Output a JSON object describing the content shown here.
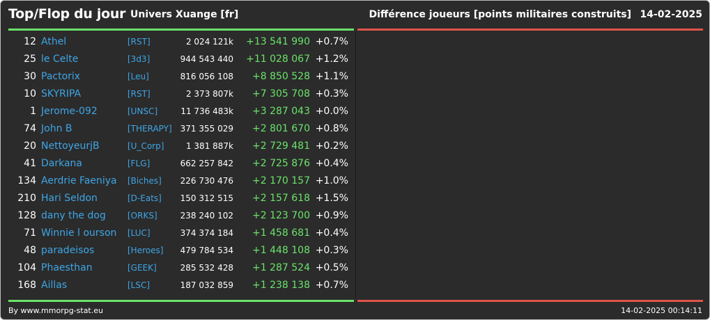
{
  "header": {
    "title": "Top/Flop du jour",
    "universe": "Univers Xuange [fr]",
    "metric": "Différence joueurs [points militaires construits]",
    "date": "14-02-2025"
  },
  "colors": {
    "background": "#2b2b2b",
    "accent_green": "#6be36b",
    "accent_red": "#e0544a",
    "link_blue": "#3ea6e6"
  },
  "top_rows": [
    {
      "rank": "12",
      "name": "Athel",
      "tag": "[RST]",
      "score": "2 024 121k",
      "diff": "+13 541 990",
      "pct": "+0.7%"
    },
    {
      "rank": "25",
      "name": "le Celte",
      "tag": "[3d3]",
      "score": "944 543 440",
      "diff": "+11 028 067",
      "pct": "+1.2%"
    },
    {
      "rank": "30",
      "name": "Pactorix",
      "tag": "[Leu]",
      "score": "816 056 108",
      "diff": "+8 850 528",
      "pct": "+1.1%"
    },
    {
      "rank": "10",
      "name": "SKYRIPA",
      "tag": "[RST]",
      "score": "2 373 807k",
      "diff": "+7 305 708",
      "pct": "+0.3%"
    },
    {
      "rank": "1",
      "name": "Jerome-092",
      "tag": "[UNSC]",
      "score": "11 736 483k",
      "diff": "+3 287 043",
      "pct": "+0.0%"
    },
    {
      "rank": "74",
      "name": "John B",
      "tag": "[THERAPY]",
      "score": "371 355 029",
      "diff": "+2 801 670",
      "pct": "+0.8%"
    },
    {
      "rank": "20",
      "name": "NettoyeurjB",
      "tag": "[U_Corp]",
      "score": "1 381 887k",
      "diff": "+2 729 481",
      "pct": "+0.2%"
    },
    {
      "rank": "41",
      "name": "Darkana",
      "tag": "[FLG]",
      "score": "662 257 842",
      "diff": "+2 725 876",
      "pct": "+0.4%"
    },
    {
      "rank": "134",
      "name": "Aerdrie Faeniya",
      "tag": "[Biches]",
      "score": "226 730 476",
      "diff": "+2 170 157",
      "pct": "+1.0%"
    },
    {
      "rank": "210",
      "name": "Hari Seldon",
      "tag": "[D-Eats]",
      "score": "150 312 515",
      "diff": "+2 157 618",
      "pct": "+1.5%"
    },
    {
      "rank": "128",
      "name": "dany the dog",
      "tag": "[ORKS]",
      "score": "238 240 102",
      "diff": "+2 123 700",
      "pct": "+0.9%"
    },
    {
      "rank": "71",
      "name": "Winnie l ourson",
      "tag": "[LUC]",
      "score": "374 374 184",
      "diff": "+1 458 681",
      "pct": "+0.4%"
    },
    {
      "rank": "48",
      "name": "paradeisos",
      "tag": "[Heroes]",
      "score": "479 784 534",
      "diff": "+1 448 108",
      "pct": "+0.3%"
    },
    {
      "rank": "104",
      "name": "Phaesthan",
      "tag": "[GEEK]",
      "score": "285 532 428",
      "diff": "+1 287 524",
      "pct": "+0.5%"
    },
    {
      "rank": "168",
      "name": "Aillas",
      "tag": "[LSC]",
      "score": "187 032 859",
      "diff": "+1 238 138",
      "pct": "+0.7%"
    }
  ],
  "footer": {
    "credit": "By www.mmorpg-stat.eu",
    "timestamp": "14-02-2025 00:14:11"
  }
}
